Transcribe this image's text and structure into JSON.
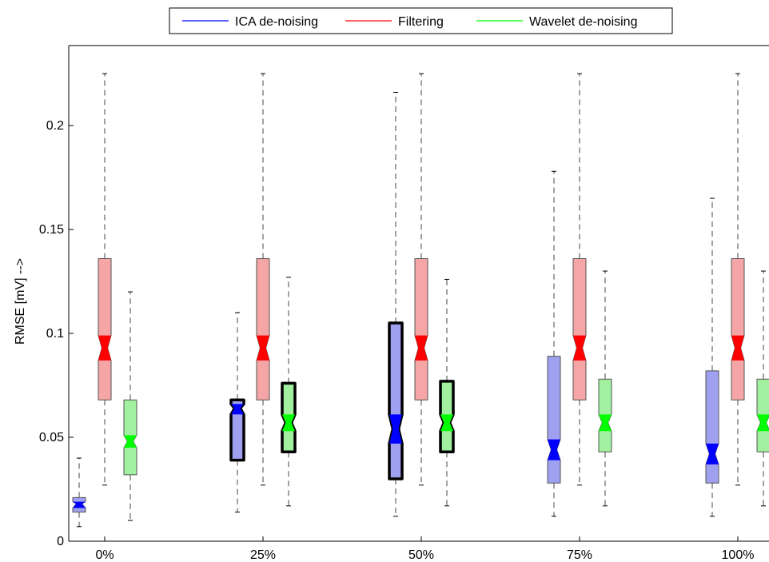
{
  "chart_data": {
    "type": "box",
    "ylabel": "RMSE [mV] -->",
    "xlabel": "",
    "ylim": [
      0,
      0.2385
    ],
    "yticks": [
      0,
      0.05,
      0.1,
      0.15,
      0.2
    ],
    "ytick_labels": [
      "0",
      "0.05",
      "0.1",
      "0.15",
      "0.2"
    ],
    "categories": [
      "0%",
      "25%",
      "50%",
      "75%",
      "100%"
    ],
    "legend": {
      "placement": "top-center",
      "entries": [
        "ICA de-noising",
        "Filtering",
        "Wavelet de-noising"
      ]
    },
    "series": [
      {
        "name": "ICA de-noising",
        "color": "#0000ff",
        "fill": "#a0a0f0",
        "boxes": [
          {
            "whisker_low": 0.007,
            "q1": 0.014,
            "notch_low": 0.016,
            "median": 0.018,
            "notch_high": 0.019,
            "q3": 0.021,
            "whisker_high": 0.04,
            "bold": false
          },
          {
            "whisker_low": 0.014,
            "q1": 0.039,
            "notch_low": 0.061,
            "median": 0.064,
            "notch_high": 0.066,
            "q3": 0.068,
            "whisker_high": 0.11,
            "bold": true
          },
          {
            "whisker_low": 0.012,
            "q1": 0.03,
            "notch_low": 0.047,
            "median": 0.054,
            "notch_high": 0.061,
            "q3": 0.105,
            "whisker_high": 0.216,
            "bold": true
          },
          {
            "whisker_low": 0.012,
            "q1": 0.028,
            "notch_low": 0.039,
            "median": 0.044,
            "notch_high": 0.049,
            "q3": 0.089,
            "whisker_high": 0.178,
            "bold": false
          },
          {
            "whisker_low": 0.012,
            "q1": 0.028,
            "notch_low": 0.037,
            "median": 0.042,
            "notch_high": 0.047,
            "q3": 0.082,
            "whisker_high": 0.165,
            "bold": false
          }
        ]
      },
      {
        "name": "Filtering",
        "color": "#ff0000",
        "fill": "#f5a5a5",
        "boxes": [
          {
            "whisker_low": 0.027,
            "q1": 0.068,
            "notch_low": 0.087,
            "median": 0.093,
            "notch_high": 0.099,
            "q3": 0.136,
            "whisker_high": 0.225,
            "bold": false
          },
          {
            "whisker_low": 0.027,
            "q1": 0.068,
            "notch_low": 0.087,
            "median": 0.093,
            "notch_high": 0.099,
            "q3": 0.136,
            "whisker_high": 0.225,
            "bold": false
          },
          {
            "whisker_low": 0.027,
            "q1": 0.068,
            "notch_low": 0.087,
            "median": 0.093,
            "notch_high": 0.099,
            "q3": 0.136,
            "whisker_high": 0.225,
            "bold": false
          },
          {
            "whisker_low": 0.027,
            "q1": 0.068,
            "notch_low": 0.087,
            "median": 0.093,
            "notch_high": 0.099,
            "q3": 0.136,
            "whisker_high": 0.225,
            "bold": false
          },
          {
            "whisker_low": 0.027,
            "q1": 0.068,
            "notch_low": 0.087,
            "median": 0.093,
            "notch_high": 0.099,
            "q3": 0.136,
            "whisker_high": 0.225,
            "bold": false
          }
        ]
      },
      {
        "name": "Wavelet de-noising",
        "color": "#00ff00",
        "fill": "#a0f0a0",
        "boxes": [
          {
            "whisker_low": 0.01,
            "q1": 0.032,
            "notch_low": 0.045,
            "median": 0.048,
            "notch_high": 0.051,
            "q3": 0.068,
            "whisker_high": 0.12,
            "bold": false
          },
          {
            "whisker_low": 0.017,
            "q1": 0.043,
            "notch_low": 0.053,
            "median": 0.057,
            "notch_high": 0.061,
            "q3": 0.076,
            "whisker_high": 0.127,
            "bold": true
          },
          {
            "whisker_low": 0.017,
            "q1": 0.043,
            "notch_low": 0.053,
            "median": 0.057,
            "notch_high": 0.061,
            "q3": 0.077,
            "whisker_high": 0.126,
            "bold": true
          },
          {
            "whisker_low": 0.017,
            "q1": 0.043,
            "notch_low": 0.053,
            "median": 0.057,
            "notch_high": 0.061,
            "q3": 0.078,
            "whisker_high": 0.13,
            "bold": false
          },
          {
            "whisker_low": 0.017,
            "q1": 0.043,
            "notch_low": 0.053,
            "median": 0.057,
            "notch_high": 0.061,
            "q3": 0.078,
            "whisker_high": 0.13,
            "bold": false
          }
        ]
      }
    ]
  }
}
